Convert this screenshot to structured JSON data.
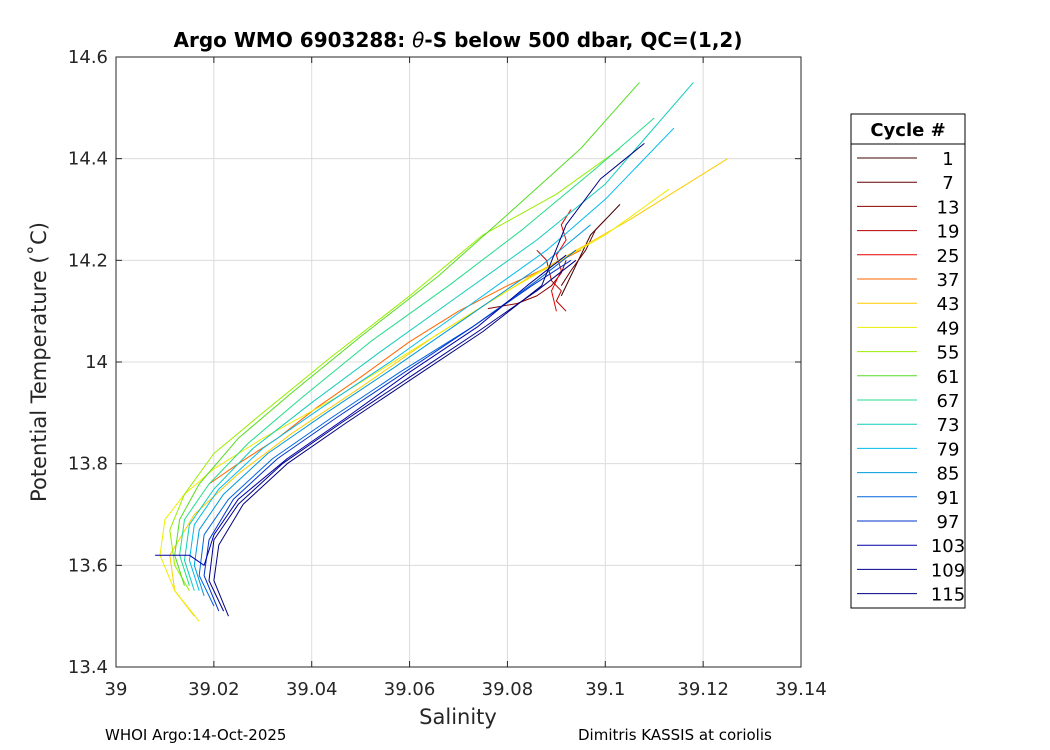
{
  "chart_data": {
    "type": "line",
    "title_prefix": "Argo WMO 6903288: ",
    "title_theta": "θ",
    "title_suffix": "-S below 500 dbar,  QC=(1,2)",
    "xlabel": "Salinity",
    "ylabel": "Potential Temperature (˚C)",
    "xlim": [
      39.0,
      39.14
    ],
    "ylim": [
      13.4,
      14.6
    ],
    "xticks": [
      39,
      39.02,
      39.04,
      39.06,
      39.08,
      39.1,
      39.12,
      39.14
    ],
    "xtick_labels": [
      "39",
      "39.02",
      "39.04",
      "39.06",
      "39.08",
      "39.1",
      "39.12",
      "39.14"
    ],
    "yticks": [
      13.4,
      13.6,
      13.8,
      14.0,
      14.2,
      14.4,
      14.6
    ],
    "ytick_labels": [
      "13.4",
      "13.6",
      "13.8",
      "14",
      "14.2",
      "14.4",
      "14.6"
    ],
    "grid": true,
    "legend_title": "Cycle #",
    "legend_placement": "outside-right",
    "series": [
      {
        "name": "1",
        "color": "#400000",
        "x": [
          39.091,
          39.093,
          39.095,
          39.097,
          39.099,
          39.101,
          39.103
        ],
        "y": [
          14.13,
          14.17,
          14.21,
          14.25,
          14.27,
          14.29,
          14.31
        ]
      },
      {
        "name": "7",
        "color": "#660000",
        "x": [
          39.091,
          39.093,
          39.096,
          39.098,
          39.1
        ],
        "y": [
          14.15,
          14.18,
          14.22,
          14.26,
          14.28
        ]
      },
      {
        "name": "13",
        "color": "#8c0000",
        "x": [
          39.076,
          39.082,
          39.086,
          39.089,
          39.091,
          39.092
        ],
        "y": [
          14.105,
          14.115,
          14.13,
          14.15,
          14.175,
          14.2
        ]
      },
      {
        "name": "19",
        "color": "#b30000",
        "x": [
          39.086,
          39.088,
          39.089,
          39.091,
          39.09,
          39.092
        ],
        "y": [
          14.22,
          14.2,
          14.16,
          14.14,
          14.12,
          14.1
        ]
      },
      {
        "name": "25",
        "color": "#e60000",
        "x": [
          39.09,
          39.089,
          39.091,
          39.09,
          39.092,
          39.091,
          39.093
        ],
        "y": [
          14.1,
          14.14,
          14.18,
          14.21,
          14.24,
          14.27,
          14.3
        ]
      },
      {
        "name": "37",
        "color": "#ff6600",
        "x": [
          39.019,
          39.025,
          39.033,
          39.041,
          39.05,
          39.06,
          39.07,
          39.08,
          39.089,
          39.095
        ],
        "y": [
          13.76,
          13.8,
          13.85,
          13.91,
          13.97,
          14.04,
          14.1,
          14.15,
          14.19,
          14.22
        ]
      },
      {
        "name": "43",
        "color": "#ffcc00",
        "x": [
          39.016,
          39.012,
          39.011,
          39.016,
          39.025,
          39.036,
          39.05,
          39.065,
          39.085,
          39.105,
          39.125
        ],
        "y": [
          13.5,
          13.55,
          13.62,
          13.7,
          13.78,
          13.86,
          13.95,
          14.05,
          14.17,
          14.28,
          14.4
        ]
      },
      {
        "name": "49",
        "color": "#eeee00",
        "x": [
          39.017,
          39.012,
          39.009,
          39.01,
          39.014,
          39.02,
          39.03,
          39.045,
          39.06,
          39.08,
          39.1,
          39.113
        ],
        "y": [
          13.49,
          13.55,
          13.62,
          13.69,
          13.74,
          13.79,
          13.85,
          13.93,
          14.02,
          14.14,
          14.25,
          14.34
        ]
      },
      {
        "name": "55",
        "color": "#99ee00",
        "x": [
          39.015,
          39.012,
          39.011,
          39.014,
          39.02,
          39.03,
          39.044,
          39.06,
          39.075,
          39.09,
          39.103
        ],
        "y": [
          13.55,
          13.6,
          13.67,
          13.74,
          13.82,
          13.9,
          14.01,
          14.13,
          14.25,
          14.33,
          14.42
        ]
      },
      {
        "name": "61",
        "color": "#55dd22",
        "x": [
          39.014,
          39.012,
          39.013,
          39.017,
          39.025,
          39.036,
          39.05,
          39.066,
          39.08,
          39.095,
          39.107
        ],
        "y": [
          13.56,
          13.62,
          13.69,
          13.76,
          13.85,
          13.94,
          14.05,
          14.17,
          14.29,
          14.42,
          14.55
        ]
      },
      {
        "name": "67",
        "color": "#22dd88",
        "x": [
          39.015,
          39.013,
          39.014,
          39.019,
          39.027,
          39.038,
          39.052,
          39.068,
          39.083,
          39.098,
          39.11
        ],
        "y": [
          13.56,
          13.62,
          13.69,
          13.76,
          13.84,
          13.93,
          14.04,
          14.15,
          14.26,
          14.38,
          14.48
        ]
      },
      {
        "name": "73",
        "color": "#11ccbb",
        "x": [
          39.016,
          39.014,
          39.015,
          39.02,
          39.028,
          39.04,
          39.054,
          39.07,
          39.086,
          39.1,
          39.118
        ],
        "y": [
          13.55,
          13.61,
          13.68,
          13.75,
          13.83,
          13.92,
          14.02,
          14.13,
          14.24,
          14.35,
          14.55
        ]
      },
      {
        "name": "79",
        "color": "#00bbee",
        "x": [
          39.017,
          39.015,
          39.016,
          39.021,
          39.03,
          39.042,
          39.056,
          39.072,
          39.088,
          39.1,
          39.114
        ],
        "y": [
          13.55,
          13.61,
          13.68,
          13.75,
          13.83,
          13.91,
          14.0,
          14.11,
          14.22,
          14.32,
          14.46
        ]
      },
      {
        "name": "85",
        "color": "#0099dd",
        "x": [
          39.018,
          39.016,
          39.017,
          39.022,
          39.031,
          39.043,
          39.057,
          39.072,
          39.087,
          39.097
        ],
        "y": [
          13.54,
          13.6,
          13.67,
          13.74,
          13.82,
          13.9,
          13.99,
          14.09,
          14.19,
          14.27
        ]
      },
      {
        "name": "91",
        "color": "#0066dd",
        "x": [
          39.02,
          39.017,
          39.018,
          39.023,
          39.032,
          39.044,
          39.058,
          39.073,
          39.086,
          39.094
        ],
        "y": [
          13.52,
          13.58,
          13.66,
          13.73,
          13.81,
          13.89,
          13.98,
          14.07,
          14.16,
          14.22
        ]
      },
      {
        "name": "97",
        "color": "#0033cc",
        "x": [
          39.021,
          39.018,
          39.019,
          39.024,
          39.033,
          39.045,
          39.059,
          39.073,
          39.085,
          39.093
        ],
        "y": [
          13.51,
          13.58,
          13.65,
          13.73,
          13.81,
          13.89,
          13.98,
          14.07,
          14.15,
          14.2
        ]
      },
      {
        "name": "103",
        "color": "#0000aa",
        "x": [
          39.008,
          39.015,
          39.018,
          39.02,
          39.025,
          39.035,
          39.047,
          39.06,
          39.074,
          39.084,
          39.092
        ],
        "y": [
          13.62,
          13.62,
          13.6,
          13.66,
          13.73,
          13.81,
          13.89,
          13.98,
          14.07,
          14.15,
          14.21
        ]
      },
      {
        "name": "109",
        "color": "#00008b",
        "x": [
          39.022,
          39.019,
          39.02,
          39.025,
          39.034,
          39.046,
          39.06,
          39.074,
          39.086,
          39.094
        ],
        "y": [
          13.51,
          13.57,
          13.65,
          13.72,
          13.8,
          13.88,
          13.97,
          14.06,
          14.14,
          14.2
        ]
      },
      {
        "name": "115",
        "color": "#000080",
        "x": [
          39.023,
          39.02,
          39.021,
          39.026,
          39.035,
          39.047,
          39.061,
          39.075,
          39.087,
          39.092,
          39.099,
          39.108
        ],
        "y": [
          13.5,
          13.57,
          13.64,
          13.72,
          13.8,
          13.88,
          13.97,
          14.06,
          14.15,
          14.27,
          14.36,
          14.43
        ]
      }
    ]
  },
  "footer": {
    "left": "WHOI Argo:14-Oct-2025",
    "right": "Dimitris KASSIS at coriolis"
  }
}
